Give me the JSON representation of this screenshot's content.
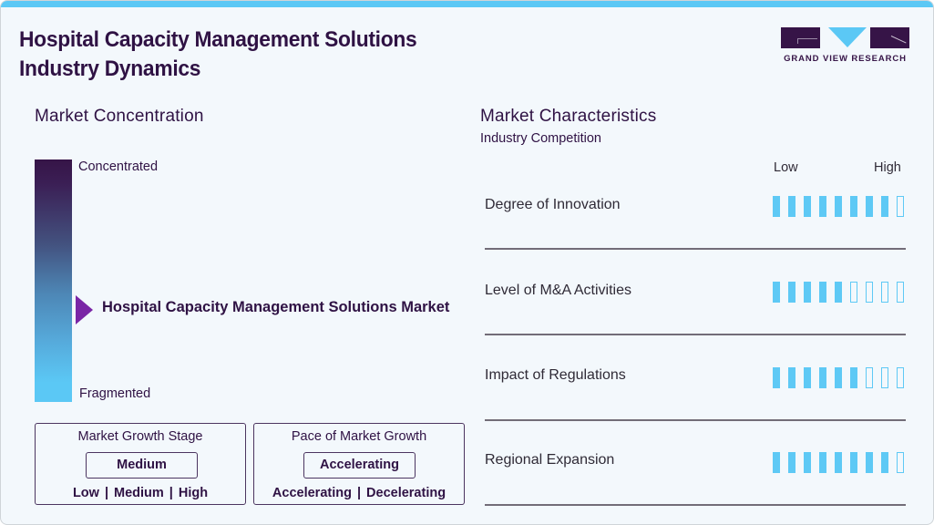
{
  "header": {
    "title_line1": "Hospital Capacity Management Solutions",
    "title_line2": "Industry Dynamics",
    "logo_text": "GRAND VIEW RESEARCH"
  },
  "colors": {
    "accent_blue": "#5bc8f5",
    "brand_purple": "#361447",
    "marker_purple": "#7a26a6",
    "background": "#f3f8fc"
  },
  "market_concentration": {
    "heading": "Market Concentration",
    "top_label": "Concentrated",
    "bottom_label": "Fragmented",
    "marker_label": "Hospital Capacity Management Solutions Market",
    "marker_icon": "triangle-right-icon"
  },
  "growth_stage": {
    "title": "Market Growth Stage",
    "value": "Medium",
    "options": [
      "Low",
      "Medium",
      "High"
    ]
  },
  "growth_pace": {
    "title": "Pace of Market Growth",
    "value": "Accelerating",
    "options": [
      "Accelerating",
      "Decelerating"
    ]
  },
  "market_characteristics": {
    "heading": "Market Characteristics",
    "subheading": "Industry Competition",
    "scale_low": "Low",
    "scale_high": "High",
    "max_level": 9,
    "rows": [
      {
        "label": "Degree of Innovation",
        "filled": 8
      },
      {
        "label": "Level of M&A Activities",
        "filled": 5
      },
      {
        "label": "Impact of Regulations",
        "filled": 6
      },
      {
        "label": "Regional Expansion",
        "filled": 8
      }
    ]
  }
}
